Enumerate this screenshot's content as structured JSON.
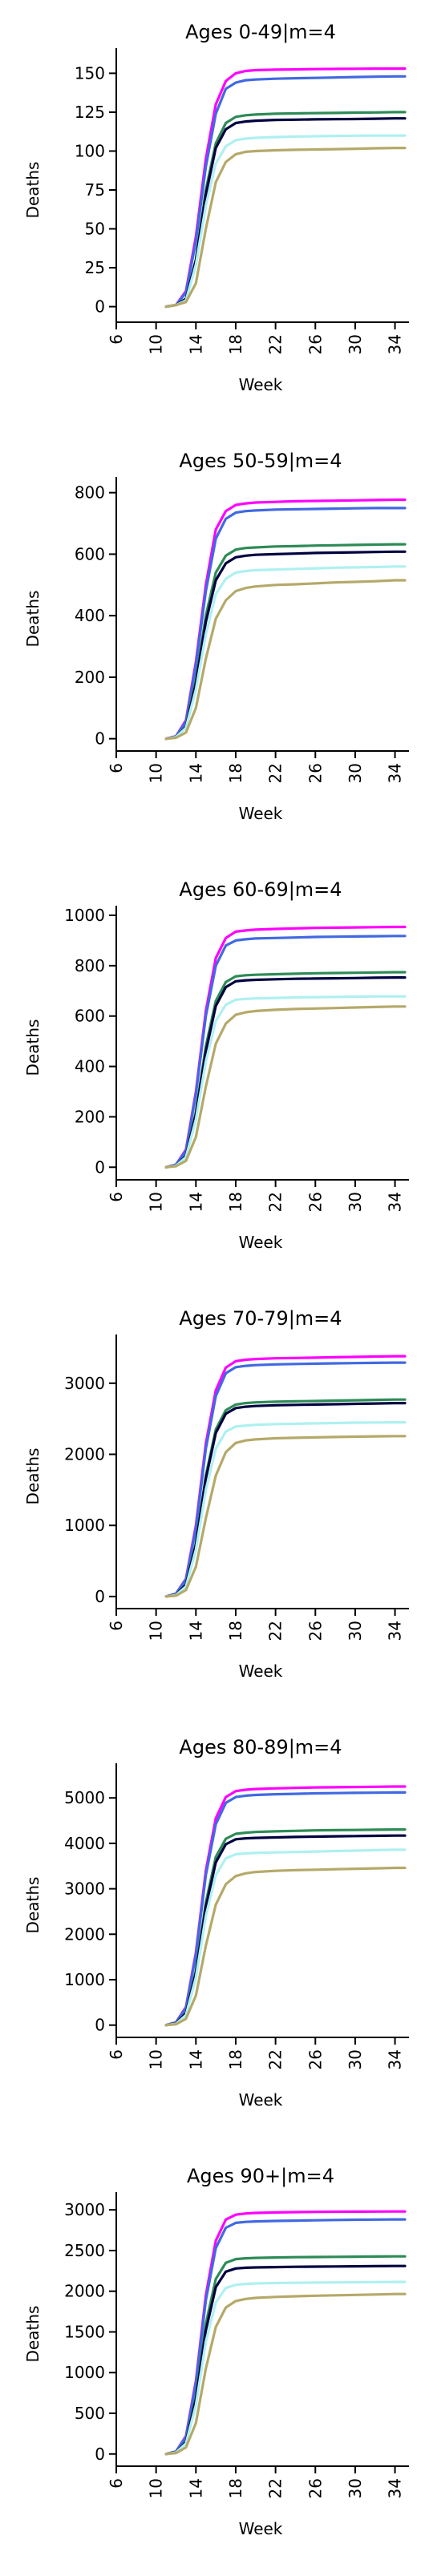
{
  "chart_data": [
    {
      "type": "line",
      "title": "Ages 0-49|m=4",
      "xlabel": "Week",
      "ylabel": "Deaths",
      "xlim": [
        6,
        35
      ],
      "ylim": [
        -10,
        160
      ],
      "xticks": [
        6,
        10,
        14,
        18,
        22,
        26,
        30,
        34
      ],
      "yticks": [
        0,
        25,
        50,
        75,
        100,
        125,
        150
      ],
      "x": [
        11,
        12,
        13,
        14,
        15,
        16,
        17,
        18,
        19,
        20,
        22,
        24,
        26,
        28,
        30,
        32,
        34,
        35
      ],
      "series": [
        {
          "color": "#ff00ff",
          "values": [
            0,
            1,
            10,
            45,
            95,
            130,
            145,
            150,
            151.5,
            152,
            152.3,
            152.5,
            152.7,
            152.8,
            152.9,
            153,
            153,
            153
          ]
        },
        {
          "color": "#4169e1",
          "values": [
            0,
            1,
            9,
            42,
            90,
            124,
            140,
            144,
            145.5,
            146,
            146.5,
            146.8,
            147,
            147.3,
            147.6,
            147.8,
            148,
            148
          ]
        },
        {
          "color": "#2e8b57",
          "values": [
            0,
            1,
            5,
            30,
            75,
            105,
            118,
            122,
            123,
            123.5,
            124,
            124.2,
            124.4,
            124.5,
            124.7,
            124.8,
            125,
            125
          ]
        },
        {
          "color": "#000040",
          "values": [
            0,
            1,
            5,
            30,
            72,
            102,
            114,
            118,
            119,
            119.5,
            120,
            120.2,
            120.4,
            120.5,
            120.6,
            120.8,
            121,
            121
          ]
        },
        {
          "color": "#aff0f0",
          "values": [
            0,
            1,
            4,
            27,
            65,
            92,
            103,
            107,
            108,
            108.5,
            109,
            109.3,
            109.5,
            109.7,
            109.9,
            110,
            110,
            110
          ]
        },
        {
          "color": "#b5a96a",
          "values": [
            0,
            1,
            3,
            15,
            50,
            80,
            93,
            98,
            99.5,
            100,
            100.5,
            100.8,
            101,
            101.2,
            101.5,
            101.8,
            102,
            102
          ]
        }
      ]
    },
    {
      "type": "line",
      "title": "Ages 50-59|m=4",
      "xlabel": "Week",
      "ylabel": "Deaths",
      "xlim": [
        6,
        35
      ],
      "ylim": [
        -40,
        820
      ],
      "xticks": [
        6,
        10,
        14,
        18,
        22,
        26,
        30,
        34
      ],
      "yticks": [
        0,
        200,
        400,
        600,
        800
      ],
      "x": [
        11,
        12,
        13,
        14,
        15,
        16,
        17,
        18,
        19,
        20,
        22,
        24,
        26,
        28,
        30,
        32,
        34,
        35
      ],
      "series": [
        {
          "color": "#ff00ff",
          "values": [
            0,
            8,
            60,
            250,
            500,
            680,
            740,
            760,
            765,
            768,
            770,
            772,
            773,
            774,
            775,
            776,
            777,
            777
          ]
        },
        {
          "color": "#4169e1",
          "values": [
            0,
            8,
            55,
            240,
            480,
            650,
            715,
            735,
            740,
            742,
            745,
            746,
            747,
            748,
            749,
            750,
            750,
            750
          ]
        },
        {
          "color": "#2e8b57",
          "values": [
            0,
            5,
            40,
            190,
            400,
            540,
            595,
            615,
            620,
            622,
            625,
            626,
            628,
            629,
            630,
            631,
            632,
            632
          ]
        },
        {
          "color": "#000040",
          "values": [
            0,
            5,
            38,
            180,
            380,
            515,
            570,
            590,
            595,
            598,
            600,
            602,
            604,
            605,
            606,
            607,
            608,
            608
          ]
        },
        {
          "color": "#aff0f0",
          "values": [
            0,
            5,
            35,
            160,
            340,
            470,
            520,
            540,
            545,
            548,
            550,
            552,
            554,
            556,
            557,
            558,
            560,
            560
          ]
        },
        {
          "color": "#b5a96a",
          "values": [
            0,
            3,
            20,
            100,
            260,
            390,
            450,
            480,
            490,
            495,
            500,
            502,
            505,
            508,
            510,
            512,
            515,
            515
          ]
        }
      ]
    },
    {
      "type": "line",
      "title": "Ages 60-69|m=4",
      "xlabel": "Week",
      "ylabel": "Deaths",
      "xlim": [
        6,
        35
      ],
      "ylim": [
        -50,
        1000
      ],
      "xticks": [
        6,
        10,
        14,
        18,
        22,
        26,
        30,
        34
      ],
      "yticks": [
        0,
        200,
        400,
        600,
        800,
        1000
      ],
      "x": [
        11,
        12,
        13,
        14,
        15,
        16,
        17,
        18,
        19,
        20,
        22,
        24,
        26,
        28,
        30,
        32,
        34,
        35
      ],
      "series": [
        {
          "color": "#ff00ff",
          "values": [
            0,
            10,
            70,
            300,
            620,
            830,
            910,
            935,
            940,
            943,
            946,
            948,
            950,
            951,
            952,
            953,
            954,
            954
          ]
        },
        {
          "color": "#4169e1",
          "values": [
            0,
            10,
            65,
            290,
            600,
            800,
            880,
            900,
            905,
            908,
            910,
            912,
            914,
            915,
            916,
            917,
            918,
            918
          ]
        },
        {
          "color": "#2e8b57",
          "values": [
            0,
            6,
            45,
            220,
            480,
            660,
            735,
            758,
            762,
            764,
            766,
            768,
            770,
            771,
            772,
            773,
            774,
            774
          ]
        },
        {
          "color": "#000040",
          "values": [
            0,
            6,
            45,
            210,
            460,
            640,
            715,
            738,
            742,
            744,
            746,
            748,
            749,
            750,
            751,
            752,
            753,
            753
          ]
        },
        {
          "color": "#aff0f0",
          "values": [
            0,
            6,
            40,
            190,
            420,
            580,
            645,
            665,
            668,
            670,
            672,
            674,
            675,
            676,
            677,
            678,
            678,
            678
          ]
        },
        {
          "color": "#b5a96a",
          "values": [
            0,
            4,
            25,
            120,
            320,
            490,
            570,
            605,
            615,
            620,
            625,
            628,
            630,
            632,
            634,
            636,
            638,
            638
          ]
        }
      ]
    },
    {
      "type": "line",
      "title": "Ages 70-79|m=4",
      "xlabel": "Week",
      "ylabel": "Deaths",
      "xlim": [
        6,
        35
      ],
      "ylim": [
        -170,
        3550
      ],
      "xticks": [
        6,
        10,
        14,
        18,
        22,
        26,
        30,
        34
      ],
      "yticks": [
        0,
        1000,
        2000,
        3000
      ],
      "x": [
        11,
        12,
        13,
        14,
        15,
        16,
        17,
        18,
        19,
        20,
        22,
        24,
        26,
        28,
        30,
        32,
        34,
        35
      ],
      "series": [
        {
          "color": "#ff00ff",
          "values": [
            0,
            40,
            250,
            1000,
            2150,
            2900,
            3220,
            3310,
            3330,
            3340,
            3350,
            3355,
            3360,
            3365,
            3370,
            3375,
            3380,
            3380
          ]
        },
        {
          "color": "#4169e1",
          "values": [
            0,
            40,
            240,
            960,
            2080,
            2820,
            3140,
            3225,
            3245,
            3255,
            3265,
            3270,
            3275,
            3280,
            3283,
            3286,
            3290,
            3290
          ]
        },
        {
          "color": "#2e8b57",
          "values": [
            0,
            25,
            170,
            750,
            1700,
            2350,
            2620,
            2700,
            2720,
            2730,
            2740,
            2745,
            2750,
            2755,
            2760,
            2765,
            2770,
            2770
          ]
        },
        {
          "color": "#000040",
          "values": [
            0,
            25,
            165,
            730,
            1660,
            2300,
            2570,
            2650,
            2670,
            2680,
            2690,
            2695,
            2700,
            2705,
            2710,
            2715,
            2720,
            2720
          ]
        },
        {
          "color": "#aff0f0",
          "values": [
            0,
            20,
            140,
            660,
            1500,
            2080,
            2320,
            2390,
            2405,
            2415,
            2425,
            2430,
            2435,
            2440,
            2445,
            2448,
            2450,
            2450
          ]
        },
        {
          "color": "#b5a96a",
          "values": [
            0,
            12,
            90,
            420,
            1100,
            1700,
            2030,
            2160,
            2195,
            2210,
            2225,
            2232,
            2238,
            2243,
            2248,
            2252,
            2256,
            2256
          ]
        }
      ]
    },
    {
      "type": "line",
      "title": "Ages 80-89|m=4",
      "xlabel": "Week",
      "ylabel": "Deaths",
      "xlim": [
        6,
        35
      ],
      "ylim": [
        -270,
        5550
      ],
      "xticks": [
        6,
        10,
        14,
        18,
        22,
        26,
        30,
        34
      ],
      "yticks": [
        0,
        1000,
        2000,
        3000,
        4000,
        5000
      ],
      "x": [
        11,
        12,
        13,
        14,
        15,
        16,
        17,
        18,
        19,
        20,
        22,
        24,
        26,
        28,
        30,
        32,
        34,
        35
      ],
      "series": [
        {
          "color": "#ff00ff",
          "values": [
            0,
            60,
            400,
            1600,
            3400,
            4550,
            5020,
            5150,
            5180,
            5195,
            5210,
            5220,
            5230,
            5235,
            5240,
            5245,
            5250,
            5250
          ]
        },
        {
          "color": "#4169e1",
          "values": [
            0,
            60,
            380,
            1550,
            3300,
            4420,
            4890,
            5020,
            5050,
            5065,
            5080,
            5090,
            5100,
            5105,
            5110,
            5115,
            5120,
            5120
          ]
        },
        {
          "color": "#2e8b57",
          "values": [
            0,
            40,
            270,
            1200,
            2700,
            3700,
            4100,
            4210,
            4235,
            4250,
            4265,
            4275,
            4285,
            4290,
            4295,
            4300,
            4305,
            4305
          ]
        },
        {
          "color": "#000040",
          "values": [
            0,
            40,
            260,
            1150,
            2600,
            3580,
            3980,
            4090,
            4110,
            4120,
            4130,
            4140,
            4148,
            4155,
            4160,
            4165,
            4170,
            4170
          ]
        },
        {
          "color": "#aff0f0",
          "values": [
            0,
            30,
            220,
            1050,
            2400,
            3300,
            3670,
            3760,
            3780,
            3790,
            3800,
            3810,
            3820,
            3830,
            3840,
            3850,
            3860,
            3860
          ]
        },
        {
          "color": "#b5a96a",
          "values": [
            0,
            20,
            140,
            650,
            1750,
            2650,
            3100,
            3280,
            3340,
            3370,
            3395,
            3410,
            3420,
            3430,
            3440,
            3450,
            3460,
            3460
          ]
        }
      ]
    },
    {
      "type": "line",
      "title": "Ages 90+|m=4",
      "xlabel": "Week",
      "ylabel": "Deaths",
      "xlim": [
        6,
        35
      ],
      "ylim": [
        -150,
        3100
      ],
      "xticks": [
        6,
        10,
        14,
        18,
        22,
        26,
        30,
        34
      ],
      "yticks": [
        0,
        500,
        1000,
        1500,
        2000,
        2500,
        3000
      ],
      "x": [
        11,
        12,
        13,
        14,
        15,
        16,
        17,
        18,
        19,
        20,
        22,
        24,
        26,
        28,
        30,
        32,
        34,
        35
      ],
      "series": [
        {
          "color": "#ff00ff",
          "values": [
            0,
            30,
            220,
            900,
            1950,
            2620,
            2880,
            2940,
            2955,
            2962,
            2968,
            2972,
            2975,
            2977,
            2978,
            2979,
            2980,
            2980
          ]
        },
        {
          "color": "#4169e1",
          "values": [
            0,
            30,
            210,
            870,
            1890,
            2530,
            2780,
            2840,
            2852,
            2858,
            2864,
            2868,
            2872,
            2875,
            2878,
            2880,
            2882,
            2882
          ]
        },
        {
          "color": "#2e8b57",
          "values": [
            0,
            20,
            150,
            700,
            1600,
            2150,
            2350,
            2395,
            2405,
            2410,
            2415,
            2418,
            2420,
            2422,
            2424,
            2426,
            2428,
            2428
          ]
        },
        {
          "color": "#000040",
          "values": [
            0,
            20,
            145,
            670,
            1520,
            2050,
            2240,
            2280,
            2288,
            2292,
            2296,
            2300,
            2302,
            2304,
            2306,
            2308,
            2310,
            2310
          ]
        },
        {
          "color": "#aff0f0",
          "values": [
            0,
            18,
            130,
            600,
            1380,
            1860,
            2040,
            2080,
            2090,
            2095,
            2100,
            2103,
            2106,
            2108,
            2110,
            2112,
            2114,
            2114
          ]
        },
        {
          "color": "#b5a96a",
          "values": [
            0,
            12,
            80,
            380,
            1050,
            1560,
            1800,
            1880,
            1905,
            1918,
            1930,
            1938,
            1945,
            1950,
            1955,
            1960,
            1965,
            1965
          ]
        }
      ]
    }
  ]
}
